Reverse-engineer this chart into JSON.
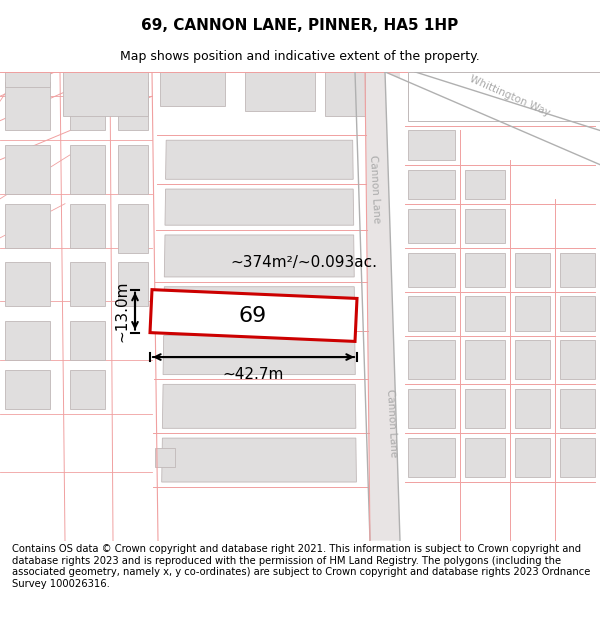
{
  "title": "69, CANNON LANE, PINNER, HA5 1HP",
  "subtitle": "Map shows position and indicative extent of the property.",
  "footer": "Contains OS data © Crown copyright and database right 2021. This information is subject to Crown copyright and database rights 2023 and is reproduced with the permission of HM Land Registry. The polygons (including the associated geometry, namely x, y co-ordinates) are subject to Crown copyright and database rights 2023 Ordnance Survey 100026316.",
  "area_label": "~374m²/~0.093ac.",
  "width_label": "~42.7m",
  "height_label": "~13.0m",
  "plot_number": "69",
  "plot_outline_color": "#cc0000",
  "boundary_color": "#f0a0a0",
  "building_color": "#e0dede",
  "building_edge": "#c0b8b8",
  "road_fill": "#e8e4e4",
  "road_edge": "#c0b8b8",
  "street_label_color": "#aaaaaa",
  "title_fontsize": 11,
  "subtitle_fontsize": 9,
  "footer_fontsize": 7.2,
  "annotation_fontsize": 11,
  "plot_number_fontsize": 16
}
